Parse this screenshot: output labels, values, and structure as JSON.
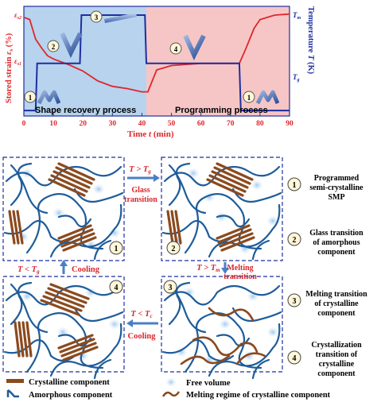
{
  "chart": {
    "x_label": "Time",
    "x_var": "t",
    "x_unit": "(min)",
    "x_ticks": [
      "0",
      "10",
      "20",
      "30",
      "40",
      "50",
      "60",
      "70",
      "80",
      "90"
    ],
    "y_left_label": "Stored strain",
    "y_left_var": "ε",
    "y_left_sub": "s",
    "y_left_unit": "(%)",
    "y_left_tick_top": "ε",
    "y_left_tick_top_sub": "s2",
    "y_left_tick_mid": "ε",
    "y_left_tick_mid_sub": "s1",
    "y_right_label": "Temperature",
    "y_right_var": "T",
    "y_right_unit": "(K)",
    "y_right_tick_top": "T",
    "y_right_tick_top_sub": "m",
    "y_right_tick_bot": "T",
    "y_right_tick_bot_sub": "g",
    "region_left_label": "Shape recovery process",
    "region_right_label": "Programming process",
    "step_numbers": [
      "1",
      "2",
      "3",
      "4",
      "1"
    ],
    "colors": {
      "strain": "#e0262b",
      "temperature": "#1e2f9e",
      "recovery_bg": "#b7d3ee",
      "programming_bg": "#f6c6c6"
    }
  },
  "chart_data": {
    "type": "line",
    "x_range": [
      0,
      90
    ],
    "series": [
      {
        "values_x": [
          0,
          2,
          4,
          6,
          8,
          10,
          12,
          15,
          20,
          25,
          30,
          35,
          40,
          42,
          45,
          50,
          55,
          60,
          65,
          70,
          73,
          75,
          78,
          80,
          85,
          90
        ],
        "values_y": [
          0.9,
          0.88,
          0.7,
          0.62,
          0.55,
          0.52,
          0.5,
          0.47,
          0.41,
          0.32,
          0.27,
          0.25,
          0.22,
          0.22,
          0.42,
          0.46,
          0.47,
          0.48,
          0.48,
          0.48,
          0.48,
          0.6,
          0.8,
          0.88,
          0.92,
          0.93
        ]
      },
      {
        "values_x": [
          0,
          4,
          4.5,
          8,
          8.5,
          19,
          19.5,
          41,
          41.5,
          54,
          54.5,
          73,
          73.5,
          77,
          77.5,
          90
        ],
        "values_y": [
          0.05,
          0.05,
          0.48,
          0.48,
          0.48,
          0.48,
          0.92,
          0.92,
          0.48,
          0.48,
          0.48,
          0.48,
          0.05,
          0.05,
          0.05,
          0.05
        ]
      }
    ]
  },
  "states": {
    "box1": "1",
    "box2": "2",
    "box3": "3",
    "box4": "4",
    "arrow_right_top_line1": "T > T",
    "arrow_right_top_sub": "g",
    "arrow_right_top_line2": "Glass",
    "arrow_right_top_line3": "transition",
    "arrow_down_line1": "T > T",
    "arrow_down_sub": "m",
    "arrow_down_line2": "Melting",
    "arrow_down_line3": "transition",
    "arrow_up_label": "T < T",
    "arrow_up_sub": "g",
    "arrow_up_text": "Cooling",
    "arrow_left_line1": "T < T",
    "arrow_left_sub": "c",
    "arrow_left_line2": "Cooling"
  },
  "legend_right": [
    {
      "num": "1",
      "lines": [
        "Programmed",
        "semi-crystalline",
        "SMP"
      ]
    },
    {
      "num": "2",
      "lines": [
        "Glass transition",
        "of amorphous",
        "component"
      ]
    },
    {
      "num": "3",
      "lines": [
        "Melting transition",
        "of crystalline",
        "component"
      ]
    },
    {
      "num": "4",
      "lines": [
        "Crystallization",
        "transition of",
        "crystalline",
        "component"
      ]
    }
  ],
  "legend_bottom": {
    "crystalline": "Crystalline component",
    "amorphous": "Amorphous component",
    "free_volume": "Free volume",
    "melting": "Melting regime of crystalline component"
  }
}
